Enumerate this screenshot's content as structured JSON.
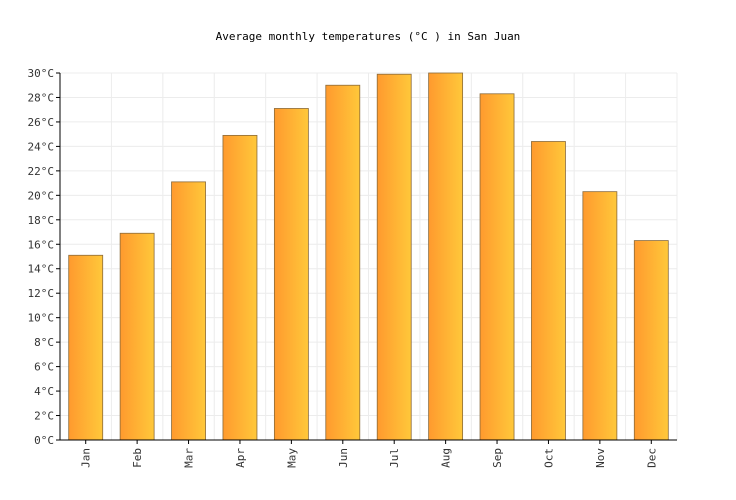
{
  "chart_data": {
    "type": "bar",
    "title": "Average monthly temperatures (°C ) in San Juan",
    "xlabel": "",
    "ylabel": "",
    "categories": [
      "Jan",
      "Feb",
      "Mar",
      "Apr",
      "May",
      "Jun",
      "Jul",
      "Aug",
      "Sep",
      "Oct",
      "Nov",
      "Dec"
    ],
    "values": [
      15.1,
      16.9,
      21.1,
      24.9,
      27.1,
      29.0,
      29.9,
      30.0,
      28.3,
      24.4,
      20.3,
      16.3
    ],
    "ylim": [
      0,
      30
    ],
    "ytick_step": 2,
    "ytick_suffix": "°C",
    "grid": true,
    "bar_gradient": [
      "#ff9a2e",
      "#ffc83a"
    ]
  }
}
